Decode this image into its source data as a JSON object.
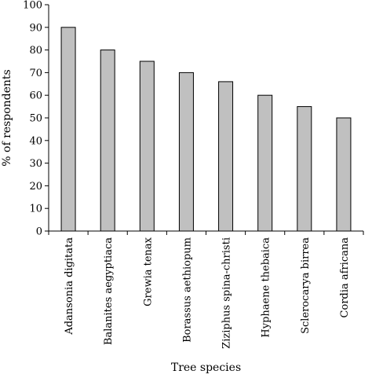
{
  "chart_data": {
    "type": "bar",
    "categories": [
      "Adansonia digitata",
      "Balanites aegyptiaca",
      "Grewia tenax",
      "Borassus aethiopum",
      "Ziziphus spina-christi",
      "Hyphaene thebaica",
      "Sclerocarya birrea",
      "Cordia africana"
    ],
    "values": [
      90,
      80,
      75,
      70,
      66,
      60,
      55,
      50
    ],
    "xlabel": "Tree species",
    "ylabel": "% of respondents",
    "ylim": [
      0,
      100
    ],
    "yticks": [
      0,
      10,
      20,
      30,
      40,
      50,
      60,
      70,
      80,
      90,
      100
    ],
    "grid": false,
    "bar_color": "#c0c0c0",
    "bar_edge_color": "#000000"
  }
}
